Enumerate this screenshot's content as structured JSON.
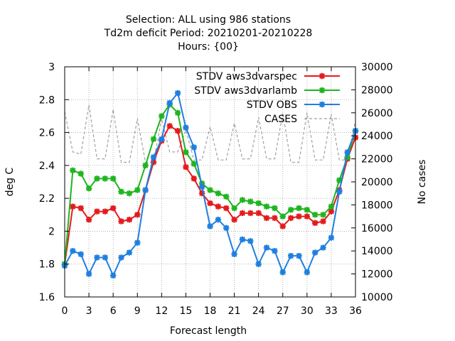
{
  "chart_data": {
    "type": "line",
    "title_lines": [
      "Selection: ALL using   986 stations",
      "Td2m deficit   Period: 20210201-20210228",
      "Hours: {00}"
    ],
    "xlabel": "Forecast length",
    "ylabel": "deg C",
    "y2label": "No cases",
    "xlim": [
      0,
      36
    ],
    "ylim": [
      1.6,
      3.0
    ],
    "y2lim": [
      10000,
      30000
    ],
    "xticks": [
      0,
      3,
      6,
      9,
      12,
      15,
      18,
      21,
      24,
      27,
      30,
      33,
      36
    ],
    "yticks": [
      1.6,
      1.8,
      2.0,
      2.2,
      2.4,
      2.6,
      2.8,
      3.0
    ],
    "ytick_labels": [
      "1.6",
      "1.8",
      "2",
      "2.2",
      "2.4",
      "2.6",
      "2.8",
      "3"
    ],
    "y2ticks": [
      10000,
      12000,
      14000,
      16000,
      18000,
      20000,
      22000,
      24000,
      26000,
      28000,
      30000
    ],
    "grid": true,
    "legend_position": "top-right",
    "x": [
      0,
      1,
      2,
      3,
      4,
      5,
      6,
      7,
      8,
      9,
      10,
      11,
      12,
      13,
      14,
      15,
      16,
      17,
      18,
      19,
      20,
      21,
      22,
      23,
      24,
      25,
      26,
      27,
      28,
      29,
      30,
      31,
      32,
      33,
      34,
      35,
      36
    ],
    "series": [
      {
        "name": "STDV aws3dvarspec",
        "color": "#e41a1c",
        "axis": "y",
        "values": [
          1.8,
          2.15,
          2.14,
          2.07,
          2.12,
          2.12,
          2.14,
          2.06,
          2.07,
          2.1,
          2.25,
          2.42,
          2.55,
          2.64,
          2.61,
          2.39,
          2.32,
          2.23,
          2.17,
          2.15,
          2.14,
          2.07,
          2.11,
          2.11,
          2.11,
          2.08,
          2.08,
          2.03,
          2.08,
          2.09,
          2.09,
          2.05,
          2.06,
          2.12,
          2.25,
          2.44,
          2.57
        ]
      },
      {
        "name": "STDV aws3dvarlamb",
        "color": "#1eb51e",
        "axis": "y",
        "values": [
          1.8,
          2.37,
          2.35,
          2.26,
          2.32,
          2.32,
          2.32,
          2.24,
          2.23,
          2.25,
          2.4,
          2.56,
          2.7,
          2.77,
          2.72,
          2.48,
          2.41,
          2.29,
          2.25,
          2.23,
          2.21,
          2.14,
          2.19,
          2.18,
          2.17,
          2.15,
          2.14,
          2.09,
          2.13,
          2.14,
          2.13,
          2.1,
          2.1,
          2.15,
          2.31,
          2.45,
          2.61
        ]
      },
      {
        "name": "STDV OBS",
        "color": "#1e7fe0",
        "axis": "y",
        "values": [
          1.79,
          1.88,
          1.86,
          1.74,
          1.84,
          1.84,
          1.73,
          1.84,
          1.87,
          1.93,
          2.25,
          2.45,
          2.56,
          2.78,
          2.84,
          2.63,
          2.51,
          2.27,
          2.03,
          2.07,
          2.02,
          1.86,
          1.95,
          1.94,
          1.8,
          1.9,
          1.88,
          1.75,
          1.85,
          1.85,
          1.75,
          1.87,
          1.9,
          1.96,
          2.24,
          2.48,
          2.61
        ]
      },
      {
        "name": "CASES",
        "color": "#a0a0a0",
        "axis": "y2",
        "dashed": true,
        "values": [
          26100,
          22600,
          22400,
          26700,
          22000,
          22000,
          26300,
          21700,
          21700,
          25500,
          21700,
          21700,
          25500,
          22600,
          22600,
          24500,
          21900,
          21900,
          24800,
          21900,
          21900,
          25100,
          22000,
          22000,
          25600,
          22000,
          22000,
          26000,
          21700,
          21700,
          26000,
          21900,
          21900,
          25900,
          21900,
          21900,
          25300
        ]
      }
    ]
  }
}
